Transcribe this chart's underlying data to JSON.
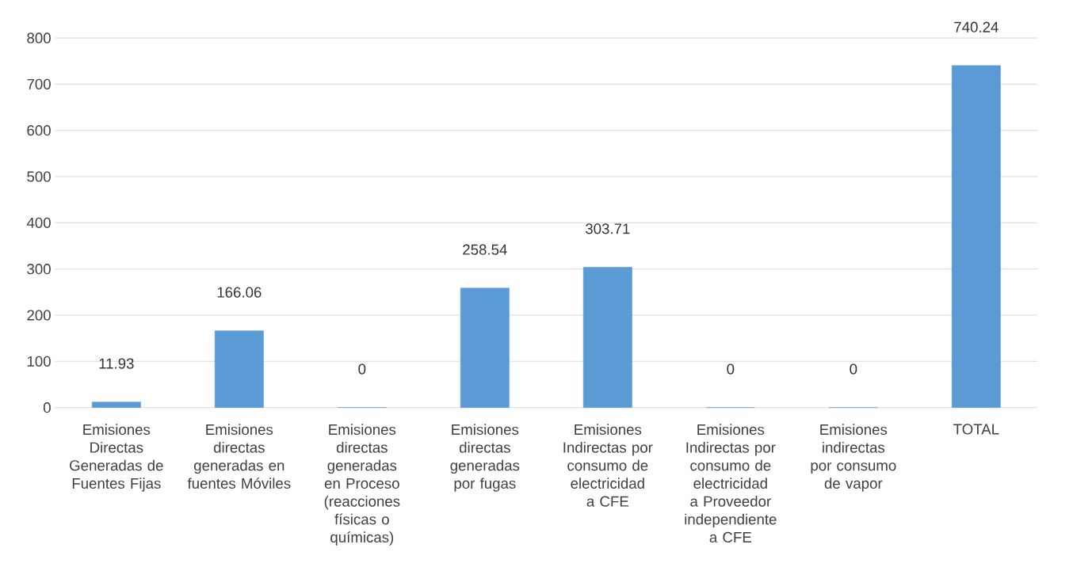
{
  "chart_data": {
    "type": "bar",
    "categories": [
      "Emisiones Directas Generadas de Fuentes Fijas",
      "Emisiones directas generadas en fuentes Móviles",
      "Emisiones directas generadas en Proceso (reacciones físicas o químicas)",
      "Emisiones directas generadas por fugas",
      "Emisiones Indirectas por consumo de electricidad a CFE",
      "Emisiones Indirectas por consumo de electricidad a Proveedor independiente a CFE",
      "Emisiones indirectas por consumo de vapor",
      "TOTAL"
    ],
    "values": [
      11.93,
      166.06,
      0,
      258.54,
      303.71,
      0,
      0,
      740.24
    ],
    "color": "#5b9bd5",
    "ylim": [
      0,
      800
    ],
    "yticks": [
      0,
      100,
      200,
      300,
      400,
      500,
      600,
      700,
      800
    ],
    "grid": "y",
    "data_labels": true
  }
}
